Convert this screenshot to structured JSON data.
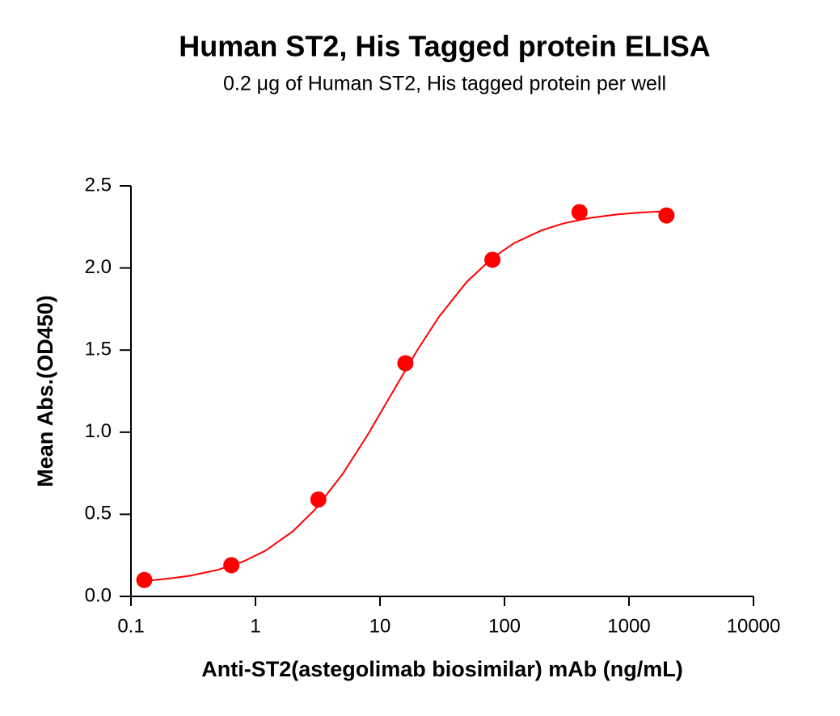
{
  "chart_data": {
    "type": "scatter",
    "title": "Human ST2, His Tagged protein ELISA",
    "subtitle": "0.2 μg of Human ST2, His tagged protein per well",
    "x_label": "Anti-ST2(astegolimab biosimilar) mAb (ng/mL)",
    "y_label": "Mean Abs.(OD450)",
    "x_scale": "log",
    "xlim": [
      0.1,
      10000
    ],
    "xticks": [
      0.1,
      1,
      10,
      100,
      1000,
      10000
    ],
    "ylim": [
      0,
      2.5
    ],
    "yticks": [
      {
        "value": 0,
        "label": "0.0"
      },
      0.5,
      {
        "value": 1,
        "label": "1.0"
      },
      1.5,
      {
        "value": 2,
        "label": "2.0"
      },
      2.5
    ],
    "series": [
      {
        "color": "#ff0000",
        "x": [
          0.128,
          0.64,
          3.2,
          16,
          80,
          400,
          2000
        ],
        "values": [
          0.1,
          0.19,
          0.59,
          1.42,
          2.05,
          2.34,
          2.32
        ]
      }
    ],
    "fit": {
      "color": "#ff0000",
      "x": [
        0.128,
        0.2,
        0.3,
        0.5,
        0.8,
        1.2,
        2,
        3,
        5,
        8,
        12,
        20,
        30,
        50,
        80,
        120,
        200,
        300,
        500,
        800,
        1200,
        2000
      ],
      "values": [
        0.094,
        0.108,
        0.126,
        0.162,
        0.213,
        0.278,
        0.397,
        0.528,
        0.744,
        0.986,
        1.215,
        1.501,
        1.706,
        1.917,
        2.061,
        2.152,
        2.23,
        2.272,
        2.306,
        2.326,
        2.337,
        2.346
      ]
    }
  }
}
